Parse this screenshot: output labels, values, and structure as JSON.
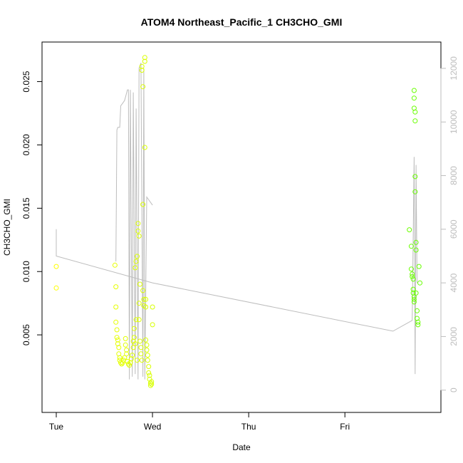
{
  "chart_data": {
    "type": "scatter",
    "title": "ATOM4 Northeast_Pacific_1 CH3CHO_GMI",
    "xlabel": "Date",
    "ylabel": "CH3CHO_GMI",
    "x_unit": "days",
    "xlim": [
      0,
      3.85
    ],
    "ylim": [
      0.0,
      0.027
    ],
    "y2lim": [
      -300,
      12450
    ],
    "x_ticks": [
      {
        "label": "Tue",
        "value": 0
      },
      {
        "label": "Wed",
        "value": 1
      },
      {
        "label": "Thu",
        "value": 2
      },
      {
        "label": "Fri",
        "value": 3
      }
    ],
    "y_ticks": [
      0.005,
      0.01,
      0.015,
      0.02,
      0.025
    ],
    "y_tick_labels": [
      "0.005",
      "0.010",
      "0.015",
      "0.020",
      "0.025"
    ],
    "y2_ticks": [
      0,
      2000,
      4000,
      6000,
      8000,
      10000,
      12000
    ],
    "y2_tick_labels": [
      "0",
      "2000",
      "4000",
      "6000",
      "8000",
      "10000",
      "12000"
    ],
    "grid": false,
    "colors": {
      "line": "#bdbdbd",
      "points_low": "#ffff00",
      "points_high": "#66ff00"
    },
    "series": [
      {
        "kind": "points",
        "axis": "left",
        "points": [
          [
            0.0,
            0.0104
          ],
          [
            0.0,
            0.0087
          ],
          [
            0.61,
            0.0105
          ],
          [
            0.62,
            0.0088
          ],
          [
            0.62,
            0.0072
          ],
          [
            0.62,
            0.006
          ],
          [
            0.63,
            0.0054
          ],
          [
            0.63,
            0.0048
          ],
          [
            0.64,
            0.0046
          ],
          [
            0.64,
            0.0043
          ],
          [
            0.65,
            0.004
          ],
          [
            0.65,
            0.0035
          ],
          [
            0.66,
            0.0032
          ],
          [
            0.66,
            0.003
          ],
          [
            0.67,
            0.0028
          ],
          [
            0.68,
            0.0027
          ],
          [
            0.69,
            0.0028
          ],
          [
            0.7,
            0.003
          ],
          [
            0.71,
            0.0032
          ],
          [
            0.72,
            0.0047
          ],
          [
            0.72,
            0.0042
          ],
          [
            0.73,
            0.0038
          ],
          [
            0.73,
            0.0035
          ],
          [
            0.74,
            0.0029
          ],
          [
            0.75,
            0.0027
          ],
          [
            0.76,
            0.0026
          ],
          [
            0.77,
            0.0028
          ],
          [
            0.78,
            0.0031
          ],
          [
            0.79,
            0.0034
          ],
          [
            0.8,
            0.0045
          ],
          [
            0.8,
            0.004
          ],
          [
            0.81,
            0.0055
          ],
          [
            0.81,
            0.0048
          ],
          [
            0.82,
            0.0043
          ],
          [
            0.82,
            0.0103
          ],
          [
            0.83,
            0.0108
          ],
          [
            0.83,
            0.0062
          ],
          [
            0.84,
            0.003
          ],
          [
            0.84,
            0.0112
          ],
          [
            0.85,
            0.0138
          ],
          [
            0.85,
            0.0132
          ],
          [
            0.86,
            0.0128
          ],
          [
            0.86,
            0.0075
          ],
          [
            0.86,
            0.0062
          ],
          [
            0.87,
            0.009
          ],
          [
            0.87,
            0.0045
          ],
          [
            0.88,
            0.004
          ],
          [
            0.88,
            0.0035
          ],
          [
            0.89,
            0.003
          ],
          [
            0.89,
            0.0262
          ],
          [
            0.89,
            0.0259
          ],
          [
            0.9,
            0.0246
          ],
          [
            0.9,
            0.0153
          ],
          [
            0.9,
            0.0085
          ],
          [
            0.91,
            0.0078
          ],
          [
            0.91,
            0.0073
          ],
          [
            0.92,
            0.0269
          ],
          [
            0.92,
            0.0266
          ],
          [
            0.92,
            0.0198
          ],
          [
            0.93,
            0.0078
          ],
          [
            0.93,
            0.0072
          ],
          [
            0.93,
            0.0046
          ],
          [
            0.94,
            0.0042
          ],
          [
            0.94,
            0.0038
          ],
          [
            0.95,
            0.0034
          ],
          [
            0.95,
            0.003
          ],
          [
            0.96,
            0.0025
          ],
          [
            0.96,
            0.002
          ],
          [
            0.97,
            0.0018
          ],
          [
            0.97,
            0.0015
          ],
          [
            0.98,
            0.0012
          ],
          [
            0.98,
            0.001
          ],
          [
            0.99,
            0.0011
          ],
          [
            0.99,
            0.0013
          ],
          [
            1.0,
            0.0072
          ],
          [
            1.0,
            0.0058
          ],
          [
            3.67,
            0.0133
          ],
          [
            3.69,
            0.012
          ],
          [
            3.69,
            0.0102
          ],
          [
            3.7,
            0.0098
          ],
          [
            3.7,
            0.0096
          ],
          [
            3.71,
            0.0094
          ],
          [
            3.71,
            0.0086
          ],
          [
            3.71,
            0.0083
          ],
          [
            3.72,
            0.008
          ],
          [
            3.72,
            0.0078
          ],
          [
            3.72,
            0.0076
          ],
          [
            3.72,
            0.0243
          ],
          [
            3.72,
            0.0237
          ],
          [
            3.72,
            0.0229
          ],
          [
            3.73,
            0.0226
          ],
          [
            3.73,
            0.0219
          ],
          [
            3.73,
            0.0175
          ],
          [
            3.73,
            0.0163
          ],
          [
            3.74,
            0.0123
          ],
          [
            3.74,
            0.0117
          ],
          [
            3.74,
            0.0083
          ],
          [
            3.75,
            0.0069
          ],
          [
            3.75,
            0.0063
          ],
          [
            3.76,
            0.006
          ],
          [
            3.76,
            0.0058
          ],
          [
            3.77,
            0.0104
          ],
          [
            3.78,
            0.0091
          ]
        ]
      },
      {
        "kind": "line",
        "axis": "right",
        "points": [
          [
            0.0,
            6000
          ],
          [
            0.0,
            5000
          ],
          [
            1.0,
            4000
          ],
          [
            3.5,
            2200
          ],
          [
            3.7,
            2600
          ],
          [
            3.72,
            8700
          ],
          [
            3.73,
            600
          ],
          [
            3.74,
            8400
          ],
          [
            3.75,
            4000
          ]
        ],
        "segments_wed": [
          [
            0.62,
            4800
          ],
          [
            0.63,
            9700
          ],
          [
            0.64,
            9800
          ],
          [
            0.66,
            9800
          ],
          [
            0.67,
            10600
          ],
          [
            0.69,
            10700
          ],
          [
            0.71,
            10800
          ],
          [
            0.74,
            11200
          ],
          [
            0.75,
            11200
          ],
          [
            0.76,
            400
          ],
          [
            0.77,
            11200
          ],
          [
            0.79,
            500
          ],
          [
            0.8,
            11100
          ],
          [
            0.82,
            600
          ],
          [
            0.83,
            10500
          ],
          [
            0.85,
            400
          ],
          [
            0.86,
            12000
          ],
          [
            0.88,
            12200
          ],
          [
            0.9,
            500
          ],
          [
            0.91,
            12000
          ],
          [
            0.92,
            400
          ],
          [
            0.94,
            7200
          ],
          [
            1.0,
            6900
          ]
        ]
      }
    ]
  }
}
